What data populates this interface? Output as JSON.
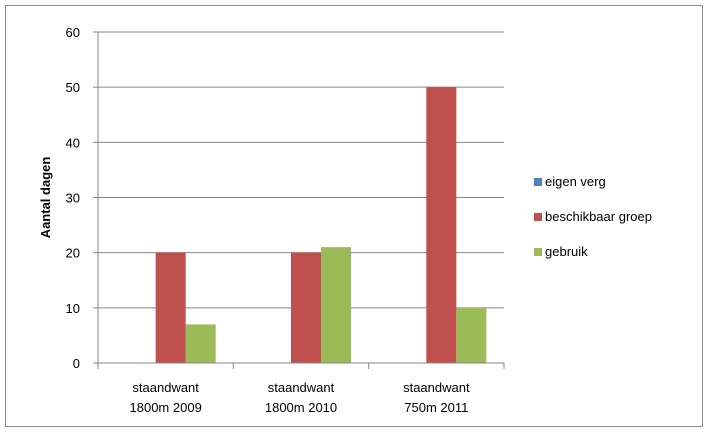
{
  "chart_data": {
    "type": "bar",
    "categories": [
      [
        "staandwant",
        "1800m 2009"
      ],
      [
        "staandwant",
        "1800m 2010"
      ],
      [
        "staandwant",
        "750m 2011"
      ]
    ],
    "series": [
      {
        "name": "eigen verg",
        "color": "#4f81bd",
        "values": [
          0,
          0,
          0
        ]
      },
      {
        "name": "beschikbaar groep",
        "color": "#c0504d",
        "values": [
          20,
          20,
          50
        ]
      },
      {
        "name": "gebruik",
        "color": "#9bbb59",
        "values": [
          7,
          21,
          10
        ]
      }
    ],
    "title": "",
    "xlabel": "",
    "ylabel": "Aantal dagen",
    "ylim": [
      0,
      60
    ],
    "yticks": [
      0,
      10,
      20,
      30,
      40,
      50,
      60
    ],
    "grid": true,
    "legend_position": "right"
  }
}
